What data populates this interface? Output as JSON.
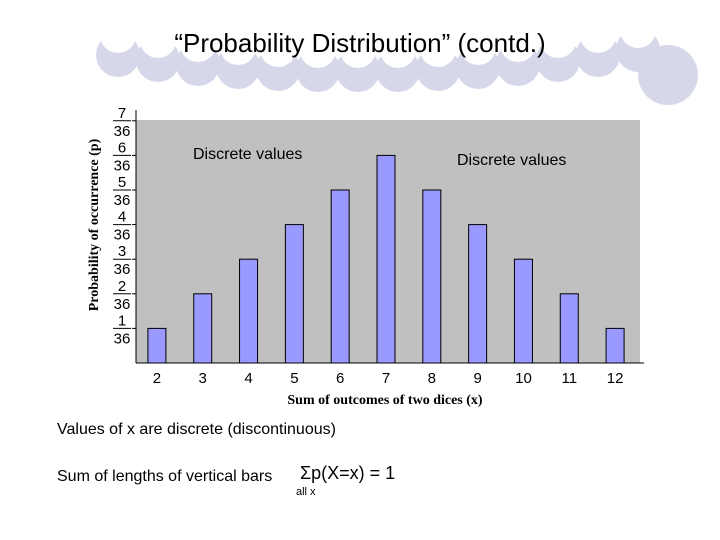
{
  "slide": {
    "title": "“Probability Distribution” (contd.)",
    "note1": "Values of x are discrete (discontinuous)",
    "note2": "Sum of lengths of vertical bars",
    "sigma": "Σp(X=x) = 1",
    "sigma_sub": "all x"
  },
  "chart_data": {
    "type": "bar",
    "categories": [
      "2",
      "3",
      "4",
      "5",
      "6",
      "7",
      "8",
      "9",
      "10",
      "11",
      "12"
    ],
    "values": [
      1,
      2,
      3,
      4,
      5,
      6,
      5,
      4,
      3,
      2,
      1
    ],
    "value_unit": "36ths",
    "xlabel": "Sum of outcomes of two dices (x)",
    "ylabel": "Probability of occurrence (p)",
    "ylim": [
      0,
      7
    ],
    "ytick_numerators": [
      "1",
      "2",
      "3",
      "4",
      "5",
      "6",
      "7"
    ],
    "ytick_denominator": "36",
    "annotations": [
      "Discrete values",
      "Discrete  values"
    ],
    "colors": {
      "bar": "#9999ff",
      "bar_edge": "#000000",
      "plot_bg": "#c0c0c0",
      "decor": "#d6d8ea"
    }
  }
}
